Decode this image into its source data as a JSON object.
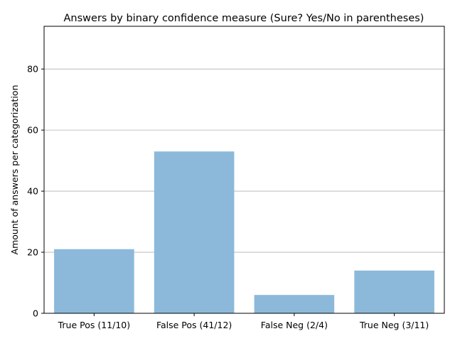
{
  "chart_data": {
    "type": "bar",
    "title": "Answers by binary confidence measure (Sure? Yes/No in parentheses)",
    "xlabel": "",
    "ylabel": "Amount of answers per categorization",
    "categories": [
      "True Pos (11/10)",
      "False Pos (41/12)",
      "False Neg (2/4)",
      "True Neg (3/11)"
    ],
    "values": [
      21,
      53,
      6,
      14
    ],
    "ylim": [
      0,
      94
    ],
    "yticks": [
      0,
      20,
      40,
      60,
      80
    ],
    "grid": "y-axis only",
    "bar_color": "#8cb9da",
    "legend": "none"
  }
}
